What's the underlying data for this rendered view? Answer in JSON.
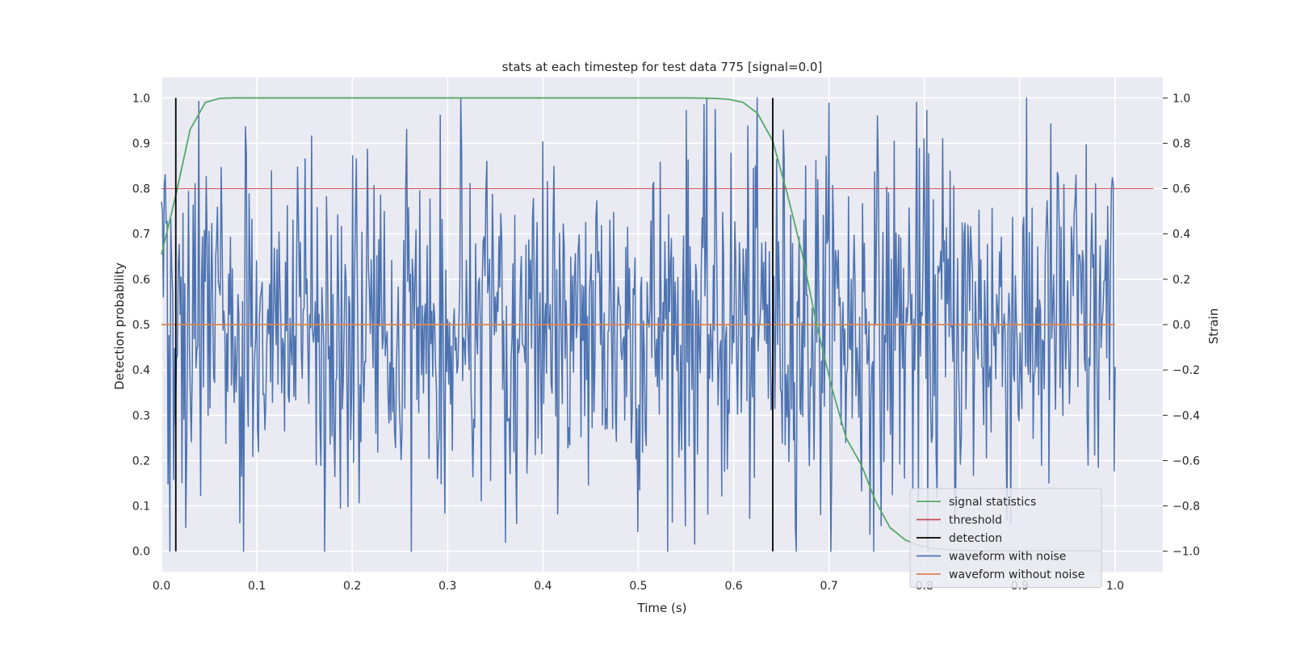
{
  "chart_data": {
    "type": "line",
    "title": "stats at each timestep for test data 775 [signal=0.0]",
    "xlabel": "Time (s)",
    "ylabel_left": "Detection probability",
    "ylabel_right": "Strain",
    "grid": true,
    "legend_position": "lower-right",
    "x_ticks": [
      "0.0",
      "0.1",
      "0.2",
      "0.3",
      "0.4",
      "0.5",
      "0.6",
      "0.7",
      "0.8",
      "0.9",
      "1.0"
    ],
    "y_left_ticks": [
      "0.0",
      "0.1",
      "0.2",
      "0.3",
      "0.4",
      "0.5",
      "0.6",
      "0.7",
      "0.8",
      "0.9",
      "1.0"
    ],
    "y_right_ticks": [
      "−1.0",
      "−0.8",
      "−0.6",
      "−0.4",
      "−0.2",
      "0.0",
      "0.2",
      "0.4",
      "0.6",
      "0.8",
      "1.0"
    ],
    "xlim": [
      0.0,
      1.05
    ],
    "ylim_left": [
      -0.045,
      1.045
    ],
    "ylim_right": [
      -1.09,
      1.09
    ],
    "series": [
      {
        "name": "signal statistics",
        "color": "#55a868",
        "axis": "left",
        "x": [
          0.0,
          0.015,
          0.03,
          0.046,
          0.061,
          0.077,
          0.1,
          0.2,
          0.3,
          0.4,
          0.5,
          0.55,
          0.58,
          0.595,
          0.61,
          0.625,
          0.641,
          0.656,
          0.672,
          0.687,
          0.703,
          0.718,
          0.734,
          0.749,
          0.764,
          0.78,
          0.795,
          0.81,
          0.83,
          0.86,
          0.9,
          0.95,
          0.985
        ],
        "y": [
          0.655,
          0.785,
          0.93,
          0.99,
          0.999,
          1.0,
          1.0,
          1.0,
          1.0,
          1.0,
          1.0,
          1.0,
          0.999,
          0.997,
          0.99,
          0.966,
          0.905,
          0.79,
          0.655,
          0.5,
          0.36,
          0.25,
          0.19,
          0.11,
          0.052,
          0.025,
          0.012,
          0.006,
          0.003,
          0.001,
          0.001,
          0.001,
          0.001
        ]
      },
      {
        "name": "threshold",
        "color": "#c44e52",
        "axis": "left",
        "x": [
          0.0,
          1.04
        ],
        "y": [
          0.8,
          0.8
        ]
      },
      {
        "name": "waveform with noise",
        "color": "#4c72b0",
        "axis": "right",
        "generated_noise": true,
        "x_range": [
          0.0,
          1.0
        ],
        "n_points": 1024,
        "std": 0.42,
        "clip": [
          -1.0,
          1.0
        ]
      },
      {
        "name": "waveform without noise",
        "color": "#dd8452",
        "axis": "right",
        "x": [
          0.0,
          1.0
        ],
        "y": [
          0.0,
          0.0
        ]
      }
    ],
    "detections": {
      "name": "detection",
      "color": "#000000",
      "x": [
        0.015,
        0.641
      ],
      "y_range": [
        0.0,
        1.0
      ]
    },
    "legend": [
      {
        "label": "signal statistics",
        "color": "#55a868"
      },
      {
        "label": "threshold",
        "color": "#c44e52"
      },
      {
        "label": "detection",
        "color": "#000000"
      },
      {
        "label": "waveform with noise",
        "color": "#4c72b0"
      },
      {
        "label": "waveform without noise",
        "color": "#dd8452"
      }
    ]
  }
}
